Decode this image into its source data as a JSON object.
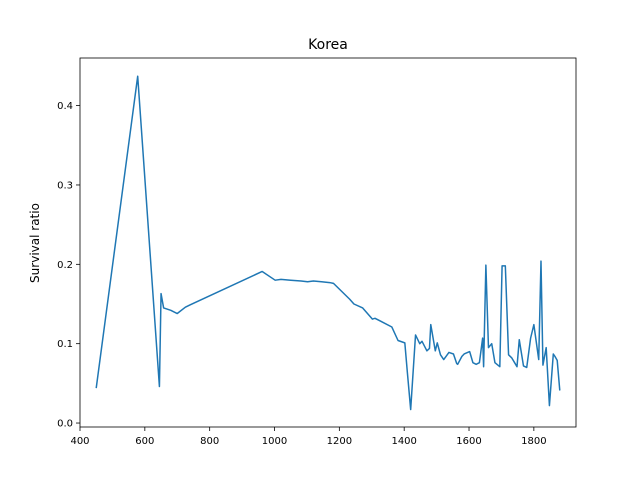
{
  "chart_data": {
    "type": "line",
    "title": "Korea",
    "xlabel": "",
    "ylabel": "Survival ratio",
    "xlim": [
      400,
      1930
    ],
    "ylim": [
      -0.005,
      0.46
    ],
    "xticks": [
      400,
      600,
      800,
      1000,
      1200,
      1400,
      1600,
      1800
    ],
    "xtick_labels": [
      "400",
      "600",
      "800",
      "1000",
      "1200",
      "1400",
      "1600",
      "1800"
    ],
    "yticks": [
      0.0,
      0.1,
      0.2,
      0.3,
      0.4
    ],
    "ytick_labels": [
      "0.0",
      "0.1",
      "0.2",
      "0.3",
      "0.4"
    ],
    "grid": false,
    "legend": "none",
    "series": [
      {
        "color": "#1f77b4",
        "x": [
          450,
          578,
          645,
          650,
          658,
          680,
          700,
          725,
          740,
          962,
          1002,
          1020,
          1050,
          1082,
          1102,
          1120,
          1145,
          1170,
          1182,
          1232,
          1245,
          1272,
          1302,
          1310,
          1362,
          1381,
          1402,
          1410,
          1420,
          1435,
          1448,
          1455,
          1470,
          1478,
          1482,
          1496,
          1502,
          1512,
          1522,
          1538,
          1552,
          1562,
          1565,
          1578,
          1585,
          1602,
          1612,
          1622,
          1632,
          1642,
          1645,
          1652,
          1660,
          1670,
          1680,
          1695,
          1702,
          1708,
          1712,
          1722,
          1732,
          1748,
          1755,
          1768,
          1778,
          1790,
          1800,
          1815,
          1822,
          1828,
          1838,
          1848,
          1860,
          1865,
          1872,
          1880
        ],
        "y": [
          0.044,
          0.437,
          0.046,
          0.163,
          0.145,
          0.142,
          0.138,
          0.146,
          0.149,
          0.191,
          0.18,
          0.181,
          0.18,
          0.179,
          0.178,
          0.179,
          0.178,
          0.177,
          0.176,
          0.156,
          0.15,
          0.145,
          0.131,
          0.132,
          0.121,
          0.104,
          0.101,
          0.063,
          0.017,
          0.111,
          0.1,
          0.103,
          0.091,
          0.094,
          0.124,
          0.091,
          0.101,
          0.086,
          0.08,
          0.089,
          0.087,
          0.075,
          0.074,
          0.084,
          0.087,
          0.09,
          0.076,
          0.074,
          0.076,
          0.107,
          0.071,
          0.199,
          0.095,
          0.1,
          0.076,
          0.071,
          0.198,
          0.198,
          0.198,
          0.086,
          0.082,
          0.071,
          0.105,
          0.072,
          0.07,
          0.107,
          0.124,
          0.08,
          0.204,
          0.073,
          0.095,
          0.022,
          0.087,
          0.084,
          0.079,
          0.041
        ]
      }
    ]
  }
}
